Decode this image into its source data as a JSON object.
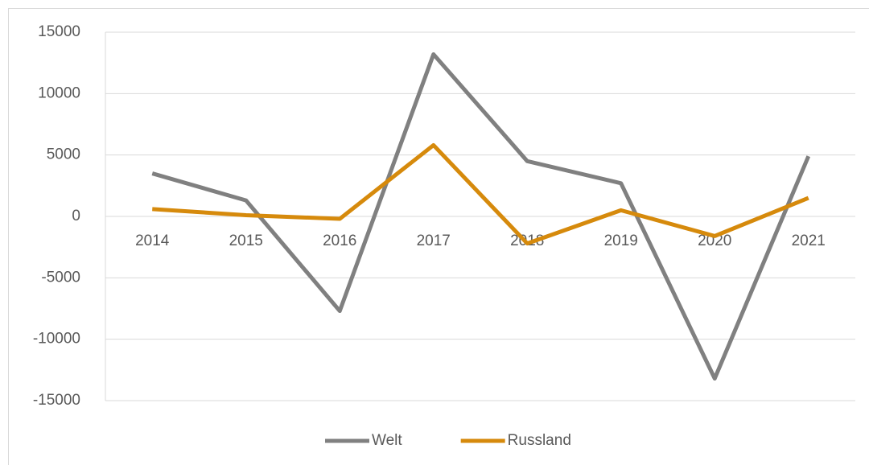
{
  "chart_data": {
    "type": "line",
    "categories": [
      "2014",
      "2015",
      "2016",
      "2017",
      "2018",
      "2019",
      "2020",
      "2021"
    ],
    "series": [
      {
        "name": "Welt",
        "color": "#808080",
        "values": [
          3500,
          1300,
          -7700,
          13200,
          4500,
          2700,
          -13200,
          4900
        ]
      },
      {
        "name": "Russland",
        "color": "#d68a0c",
        "values": [
          600,
          100,
          -200,
          5800,
          -2200,
          500,
          -1600,
          1500
        ]
      }
    ],
    "ylim": [
      -15000,
      15000
    ],
    "yticks": [
      -15000,
      -10000,
      -5000,
      0,
      5000,
      10000,
      15000
    ],
    "grid": true,
    "legend": "bottom"
  }
}
